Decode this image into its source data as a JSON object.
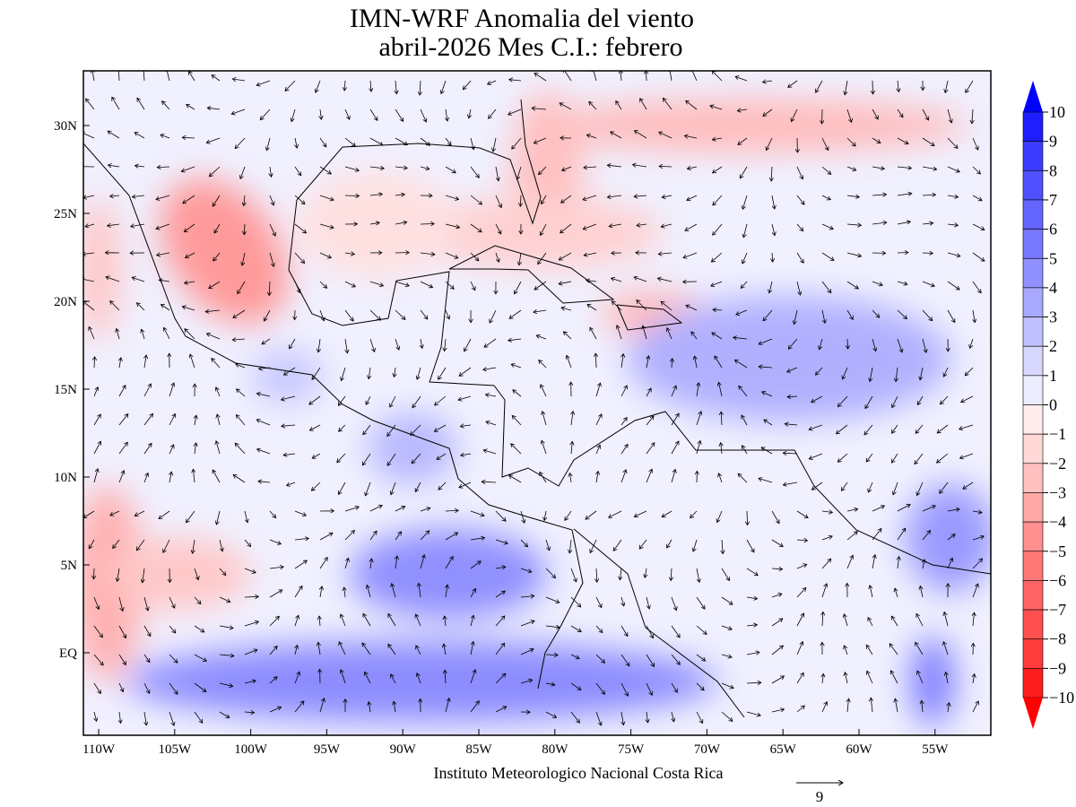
{
  "header": {
    "title_line1": "IMN-WRF Anomalia del viento",
    "title_line2": "abril-2026 Mes C.I.: febrero"
  },
  "map": {
    "lat_ticks": [
      "30N",
      "25N",
      "20N",
      "15N",
      "10N",
      "5N",
      "EQ"
    ],
    "lon_ticks": [
      "110W",
      "105W",
      "100W",
      "95W",
      "90W",
      "85W",
      "80W",
      "75W",
      "70W",
      "65W",
      "60W",
      "55W"
    ]
  },
  "colorbar": {
    "labels": [
      "10",
      "9",
      "8",
      "7",
      "6",
      "5",
      "4",
      "3",
      "2",
      "1",
      "0",
      "−1",
      "−2",
      "−3",
      "−4",
      "−5",
      "−6",
      "−7",
      "−8",
      "−9",
      "−10"
    ],
    "colors": [
      "#0000ff",
      "#1e1eff",
      "#3c3cff",
      "#5050ff",
      "#6464ff",
      "#7878ff",
      "#9090ff",
      "#a8a8ff",
      "#c0c0ff",
      "#d8d8ff",
      "#ececff",
      "#ffecec",
      "#ffd8d8",
      "#ffc0c0",
      "#ffa8a8",
      "#ff9090",
      "#ff7878",
      "#ff6464",
      "#ff5050",
      "#ff3c3c",
      "#ff1e1e",
      "#ff0000"
    ]
  },
  "footer": {
    "credit": "Instituto Meteorologico Nacional Costa Rica",
    "reference_vector": "9"
  }
}
